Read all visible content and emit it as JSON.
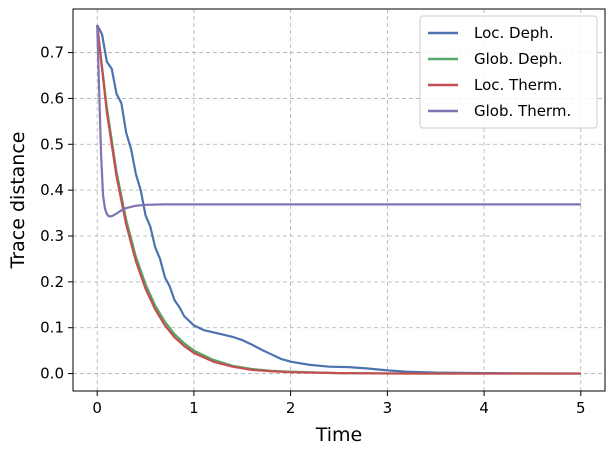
{
  "chart_data": {
    "type": "line",
    "xlabel": "Time",
    "ylabel": "Trace distance",
    "xlim": [
      -0.25,
      5.25
    ],
    "ylim": [
      -0.038,
      0.795
    ],
    "xticks": [
      0,
      1,
      2,
      3,
      4,
      5
    ],
    "xtick_labels": [
      "0",
      "1",
      "2",
      "3",
      "4",
      "5"
    ],
    "yticks": [
      0.0,
      0.1,
      0.2,
      0.3,
      0.4,
      0.5,
      0.6,
      0.7
    ],
    "ytick_labels": [
      "0.0",
      "0.1",
      "0.2",
      "0.3",
      "0.4",
      "0.5",
      "0.6",
      "0.7"
    ],
    "grid": true,
    "legend_position": "top-right",
    "series": [
      {
        "name": "Loc. Deph.",
        "color": "#4c72b0",
        "x": [
          0,
          0.05,
          0.1,
          0.15,
          0.2,
          0.25,
          0.3,
          0.35,
          0.4,
          0.45,
          0.5,
          0.55,
          0.6,
          0.65,
          0.7,
          0.75,
          0.8,
          0.85,
          0.9,
          0.95,
          1.0,
          1.1,
          1.2,
          1.3,
          1.4,
          1.5,
          1.6,
          1.7,
          1.8,
          1.9,
          2.0,
          2.2,
          2.4,
          2.6,
          2.8,
          3.0,
          3.2,
          3.5,
          4.0,
          4.5,
          5.0
        ],
        "y": [
          0.76,
          0.74,
          0.68,
          0.665,
          0.61,
          0.59,
          0.525,
          0.49,
          0.435,
          0.4,
          0.345,
          0.32,
          0.275,
          0.25,
          0.21,
          0.19,
          0.16,
          0.145,
          0.125,
          0.115,
          0.105,
          0.095,
          0.09,
          0.085,
          0.08,
          0.073,
          0.063,
          0.052,
          0.042,
          0.032,
          0.026,
          0.019,
          0.015,
          0.014,
          0.011,
          0.007,
          0.004,
          0.002,
          0.001,
          0.0005,
          0.0002
        ]
      },
      {
        "name": "Glob. Deph.",
        "color": "#55a868",
        "x": [
          0,
          0.1,
          0.2,
          0.3,
          0.4,
          0.5,
          0.6,
          0.7,
          0.8,
          0.9,
          1.0,
          1.2,
          1.4,
          1.6,
          1.8,
          2.0,
          2.5,
          3.0,
          3.5,
          4.0,
          5.0
        ],
        "y": [
          0.76,
          0.58,
          0.44,
          0.335,
          0.255,
          0.195,
          0.148,
          0.113,
          0.086,
          0.066,
          0.05,
          0.03,
          0.017,
          0.01,
          0.006,
          0.004,
          0.001,
          0.0003,
          0.0001,
          0.0,
          0.0
        ]
      },
      {
        "name": "Loc. Therm.",
        "color": "#c44e52",
        "x": [
          0,
          0.1,
          0.2,
          0.3,
          0.4,
          0.5,
          0.6,
          0.7,
          0.8,
          0.9,
          1.0,
          1.2,
          1.4,
          1.6,
          1.8,
          2.0,
          2.5,
          3.0,
          3.5,
          4.0,
          5.0
        ],
        "y": [
          0.76,
          0.57,
          0.43,
          0.325,
          0.245,
          0.185,
          0.14,
          0.105,
          0.079,
          0.06,
          0.045,
          0.026,
          0.015,
          0.008,
          0.005,
          0.003,
          0.001,
          0.0002,
          0.0,
          0.0,
          0.0
        ]
      },
      {
        "name": "Glob. Therm.",
        "color": "#8172b2",
        "x": [
          0,
          0.02,
          0.04,
          0.06,
          0.08,
          0.1,
          0.12,
          0.15,
          0.2,
          0.25,
          0.3,
          0.4,
          0.5,
          0.7,
          1.0,
          2.0,
          3.0,
          4.0,
          5.0
        ],
        "y": [
          0.76,
          0.62,
          0.48,
          0.39,
          0.36,
          0.348,
          0.343,
          0.343,
          0.349,
          0.356,
          0.361,
          0.366,
          0.368,
          0.369,
          0.369,
          0.369,
          0.369,
          0.369,
          0.369
        ]
      }
    ]
  }
}
